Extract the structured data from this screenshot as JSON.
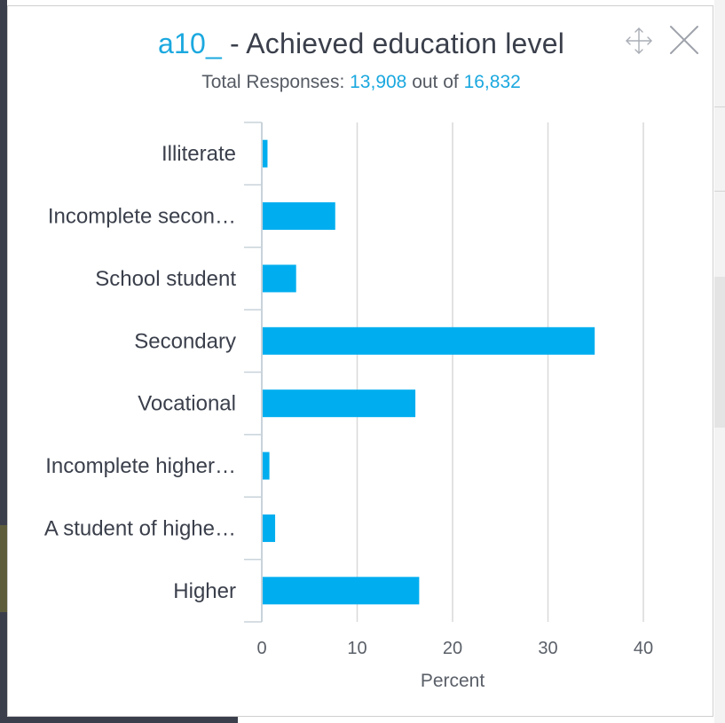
{
  "modal": {
    "title_code": "a10_",
    "title_rest": " - Achieved education level",
    "subtitle": {
      "prefix": "Total Responses: ",
      "responses": "13,908",
      "middle": " out of ",
      "total": "16,832"
    },
    "icons": {
      "move": "move-icon",
      "close": "close-icon"
    }
  },
  "colors": {
    "accent": "#1ba8df",
    "bar": "#00aeef",
    "text": "#3a3f4b"
  },
  "chart_data": {
    "type": "bar",
    "orientation": "horizontal",
    "categories": [
      "Illiterate",
      "Incomplete secon…",
      "School student",
      "Secondary",
      "Vocational",
      "Incomplete higher…",
      "A student of highe…",
      "Higher"
    ],
    "values": [
      0.6,
      7.7,
      3.6,
      34.9,
      16.1,
      0.8,
      1.4,
      16.5
    ],
    "xlabel": "Percent",
    "ylabel": "",
    "xlim": [
      0,
      40
    ],
    "xticks": [
      0,
      10,
      20,
      30,
      40
    ],
    "grid": true,
    "legend": "none"
  }
}
